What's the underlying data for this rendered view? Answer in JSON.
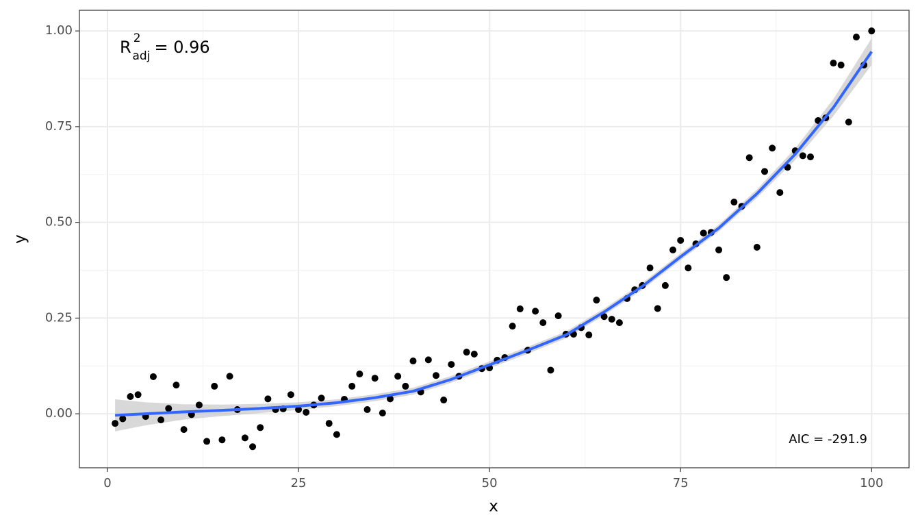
{
  "chart_data": {
    "type": "scatter",
    "xlabel": "x",
    "ylabel": "y",
    "x": [
      1,
      2,
      3,
      4,
      5,
      6,
      7,
      8,
      9,
      10,
      11,
      12,
      13,
      14,
      15,
      16,
      17,
      18,
      19,
      20,
      21,
      22,
      23,
      24,
      25,
      26,
      27,
      28,
      29,
      30,
      31,
      32,
      33,
      34,
      35,
      36,
      37,
      38,
      39,
      40,
      41,
      42,
      43,
      44,
      45,
      46,
      47,
      48,
      49,
      50,
      51,
      52,
      53,
      54,
      55,
      56,
      57,
      58,
      59,
      60,
      61,
      62,
      63,
      64,
      65,
      66,
      67,
      68,
      69,
      70,
      71,
      72,
      73,
      74,
      75,
      76,
      77,
      78,
      79,
      80,
      81,
      82,
      83,
      84,
      85,
      86,
      87,
      88,
      89,
      90,
      91,
      92,
      93,
      94,
      95,
      96,
      97,
      98,
      99,
      100
    ],
    "values": [
      -0.025,
      -0.013,
      0.045,
      0.05,
      -0.007,
      0.097,
      -0.016,
      0.014,
      0.075,
      -0.041,
      -0.002,
      0.023,
      -0.072,
      0.072,
      -0.068,
      0.098,
      0.011,
      -0.063,
      -0.086,
      -0.036,
      0.039,
      0.011,
      0.013,
      0.05,
      0.011,
      0.004,
      0.023,
      0.041,
      -0.025,
      -0.054,
      0.038,
      0.072,
      0.104,
      0.011,
      0.093,
      0.002,
      0.039,
      0.098,
      0.072,
      0.138,
      0.057,
      0.141,
      0.1,
      0.036,
      0.129,
      0.098,
      0.161,
      0.156,
      0.118,
      0.12,
      0.14,
      0.147,
      0.229,
      0.274,
      0.166,
      0.268,
      0.238,
      0.114,
      0.256,
      0.208,
      0.208,
      0.225,
      0.206,
      0.297,
      0.254,
      0.247,
      0.238,
      0.301,
      0.324,
      0.335,
      0.381,
      0.275,
      0.335,
      0.428,
      0.453,
      0.381,
      0.444,
      0.472,
      0.474,
      0.428,
      0.356,
      0.553,
      0.542,
      0.669,
      0.435,
      0.633,
      0.694,
      0.578,
      0.644,
      0.687,
      0.674,
      0.671,
      0.766,
      0.773,
      0.916,
      0.911,
      0.762,
      0.984,
      0.911,
      1.0
    ],
    "color": "#000000",
    "fit": {
      "x": [
        1,
        5,
        10,
        15,
        20,
        25,
        30,
        35,
        40,
        45,
        50,
        55,
        60,
        65,
        70,
        75,
        80,
        85,
        90,
        95,
        100
      ],
      "values": [
        -0.004,
        0.0,
        0.005,
        0.009,
        0.014,
        0.02,
        0.029,
        0.042,
        0.059,
        0.09,
        0.128,
        0.166,
        0.206,
        0.266,
        0.333,
        0.41,
        0.485,
        0.575,
        0.678,
        0.8,
        0.946
      ],
      "lower": [
        -0.046,
        -0.03,
        -0.015,
        -0.006,
        0.002,
        0.01,
        0.02,
        0.033,
        0.05,
        0.081,
        0.119,
        0.157,
        0.197,
        0.257,
        0.324,
        0.401,
        0.476,
        0.564,
        0.663,
        0.778,
        0.911
      ],
      "upper": [
        0.038,
        0.03,
        0.025,
        0.024,
        0.026,
        0.03,
        0.038,
        0.051,
        0.068,
        0.099,
        0.137,
        0.175,
        0.215,
        0.275,
        0.342,
        0.419,
        0.494,
        0.586,
        0.693,
        0.822,
        0.981
      ],
      "color": "#3366FF",
      "band_color": "#bebebe"
    },
    "xlim": [
      -3.67,
      104.9
    ],
    "ylim": [
      -0.141,
      1.054
    ],
    "xticks": [
      0,
      25,
      50,
      75,
      100
    ],
    "yticks": [
      {
        "value": 0,
        "label": "0.00"
      },
      {
        "value": 0.25,
        "label": "0.25"
      },
      {
        "value": 0.5,
        "label": "0.50"
      },
      {
        "value": 0.75,
        "label": "0.75"
      },
      {
        "value": 1,
        "label": "1.00"
      }
    ],
    "x_minor_grid": [
      12.5,
      37.5,
      62.5,
      87.5
    ],
    "y_minor_grid": [
      0.125,
      0.375,
      0.625,
      0.875
    ],
    "grid": true,
    "r2_annotation": {
      "base": "R",
      "sup": "2",
      "sub": "adj",
      "text": "= 0.96"
    },
    "aic_annotation": "AIC = -291.9"
  }
}
